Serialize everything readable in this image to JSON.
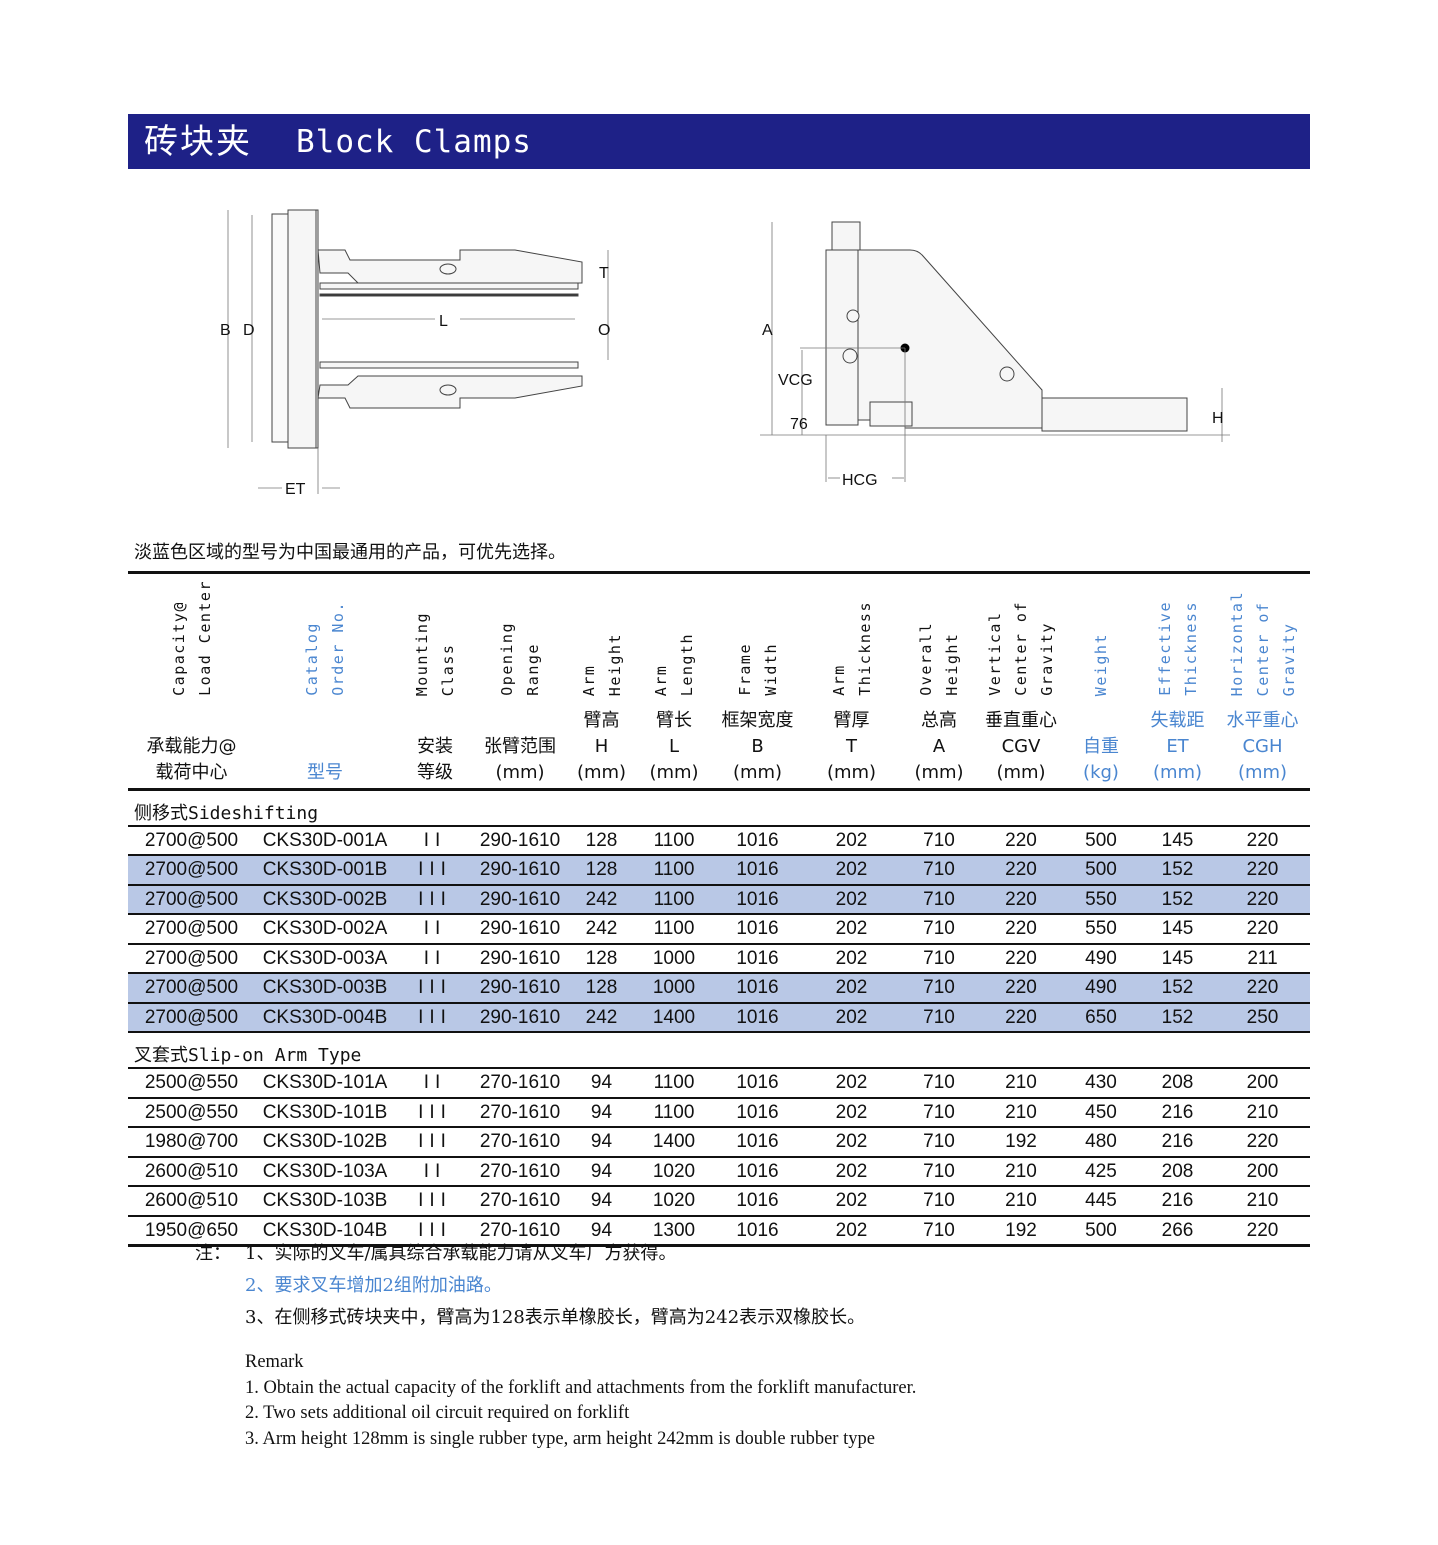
{
  "title": {
    "cn": "砖块夹",
    "en": "Block Clamps"
  },
  "colors": {
    "title_bar": "#1e2187",
    "highlight_row": "#b9c8e6",
    "blue_text": "#4a86d0"
  },
  "diagram_left": {
    "labels": {
      "B": "B",
      "D": "D",
      "L": "L",
      "T": "T",
      "O": "O",
      "ET": "ET"
    }
  },
  "diagram_right": {
    "labels": {
      "A": "A",
      "VCG": "VCG",
      "76": "76",
      "HCG": "HCG",
      "H": "H"
    }
  },
  "lead_text": "淡蓝色区域的型号为中国最通用的产品，可优先选择。",
  "columns": [
    {
      "en": [
        "Capacity@",
        "Load Center"
      ],
      "cn": [
        "承载能力@",
        "载荷中心"
      ],
      "blue": false
    },
    {
      "en": [
        "Catalog",
        "Order No."
      ],
      "cn": [
        "型号"
      ],
      "blue": true
    },
    {
      "en": [
        "Mounting",
        "Class"
      ],
      "cn": [
        "安装",
        "等级"
      ],
      "blue": false
    },
    {
      "en": [
        "Opening",
        "Range"
      ],
      "cn": [
        "张臂范围",
        "(mm)"
      ],
      "blue": false
    },
    {
      "en": [
        "Arm",
        "Height"
      ],
      "cn": [
        "臂高",
        "H",
        "(mm)"
      ],
      "blue": false
    },
    {
      "en": [
        "Arm",
        "Length"
      ],
      "cn": [
        "臂长",
        "L",
        "(mm)"
      ],
      "blue": false
    },
    {
      "en": [
        "Frame",
        "Width"
      ],
      "cn": [
        "框架宽度",
        "B",
        "(mm)"
      ],
      "blue": false
    },
    {
      "en": [
        "Arm",
        "Thickness"
      ],
      "cn": [
        "臂厚",
        "T",
        "(mm)"
      ],
      "blue": false
    },
    {
      "en": [
        "Overall",
        "Height"
      ],
      "cn": [
        "总高",
        "A",
        "(mm)"
      ],
      "blue": false
    },
    {
      "en": [
        "Vertical",
        "Center of",
        "Gravity"
      ],
      "cn": [
        "垂直重心",
        "CGV",
        "(mm)"
      ],
      "blue": false
    },
    {
      "en": [
        "Weight"
      ],
      "cn": [
        "自重",
        "(kg)"
      ],
      "blue": true
    },
    {
      "en": [
        "Effective",
        "Thickness"
      ],
      "cn": [
        "失载距",
        "ET",
        "(mm)"
      ],
      "blue": true
    },
    {
      "en": [
        "Horizontal",
        "Center of",
        "Gravity"
      ],
      "cn": [
        "水平重心",
        "CGH",
        "(mm)"
      ],
      "blue": true
    }
  ],
  "sections": [
    {
      "title_cn": "侧移式",
      "title_en": "Sideshifting",
      "rows": [
        {
          "highlight": false,
          "cells": [
            "2700@500",
            "CKS30D-001A",
            "II",
            "290-1610",
            "128",
            "1100",
            "1016",
            "202",
            "710",
            "220",
            "500",
            "145",
            "220"
          ]
        },
        {
          "highlight": true,
          "cells": [
            "2700@500",
            "CKS30D-001B",
            "III",
            "290-1610",
            "128",
            "1100",
            "1016",
            "202",
            "710",
            "220",
            "500",
            "152",
            "220"
          ]
        },
        {
          "highlight": true,
          "cells": [
            "2700@500",
            "CKS30D-002B",
            "III",
            "290-1610",
            "242",
            "1100",
            "1016",
            "202",
            "710",
            "220",
            "550",
            "152",
            "220"
          ]
        },
        {
          "highlight": false,
          "cells": [
            "2700@500",
            "CKS30D-002A",
            "II",
            "290-1610",
            "242",
            "1100",
            "1016",
            "202",
            "710",
            "220",
            "550",
            "145",
            "220"
          ]
        },
        {
          "highlight": false,
          "cells": [
            "2700@500",
            "CKS30D-003A",
            "II",
            "290-1610",
            "128",
            "1000",
            "1016",
            "202",
            "710",
            "220",
            "490",
            "145",
            "211"
          ]
        },
        {
          "highlight": true,
          "cells": [
            "2700@500",
            "CKS30D-003B",
            "III",
            "290-1610",
            "128",
            "1000",
            "1016",
            "202",
            "710",
            "220",
            "490",
            "152",
            "220"
          ]
        },
        {
          "highlight": true,
          "cells": [
            "2700@500",
            "CKS30D-004B",
            "III",
            "290-1610",
            "242",
            "1400",
            "1016",
            "202",
            "710",
            "220",
            "650",
            "152",
            "250"
          ]
        }
      ]
    },
    {
      "title_cn": "叉套式",
      "title_en": "Slip-on Arm Type",
      "rows": [
        {
          "highlight": false,
          "cells": [
            "2500@550",
            "CKS30D-101A",
            "II",
            "270-1610",
            "94",
            "1100",
            "1016",
            "202",
            "710",
            "210",
            "430",
            "208",
            "200"
          ]
        },
        {
          "highlight": false,
          "cells": [
            "2500@550",
            "CKS30D-101B",
            "III",
            "270-1610",
            "94",
            "1100",
            "1016",
            "202",
            "710",
            "210",
            "450",
            "216",
            "210"
          ]
        },
        {
          "highlight": false,
          "cells": [
            "1980@700",
            "CKS30D-102B",
            "III",
            "270-1610",
            "94",
            "1400",
            "1016",
            "202",
            "710",
            "192",
            "480",
            "216",
            "220"
          ]
        },
        {
          "highlight": false,
          "cells": [
            "2600@510",
            "CKS30D-103A",
            "II",
            "270-1610",
            "94",
            "1020",
            "1016",
            "202",
            "710",
            "210",
            "425",
            "208",
            "200"
          ]
        },
        {
          "highlight": false,
          "cells": [
            "2600@510",
            "CKS30D-103B",
            "III",
            "270-1610",
            "94",
            "1020",
            "1016",
            "202",
            "710",
            "210",
            "445",
            "216",
            "210"
          ]
        },
        {
          "highlight": false,
          "cells": [
            "1950@650",
            "CKS30D-104B",
            "III",
            "270-1610",
            "94",
            "1300",
            "1016",
            "202",
            "710",
            "192",
            "500",
            "266",
            "220"
          ]
        }
      ]
    }
  ],
  "notes": {
    "label": "注：",
    "items": [
      {
        "text": "1、实际的叉车/属具综合承载能力请从叉车厂方获得。",
        "blue": false
      },
      {
        "text": "2、要求叉车增加2组附加油路。",
        "blue": true
      },
      {
        "text": "3、在侧移式砖块夹中，臂高为128表示单橡胶长，臂高为242表示双橡胶长。",
        "blue": false
      }
    ]
  },
  "remark": {
    "title": "Remark",
    "items": [
      "1. Obtain the actual capacity of the forklift and attachments from the forklift manufacturer.",
      "2. Two sets additional oil circuit required on forklift",
      "3. Arm height 128mm is single rubber type, arm height 242mm is double rubber type"
    ]
  }
}
